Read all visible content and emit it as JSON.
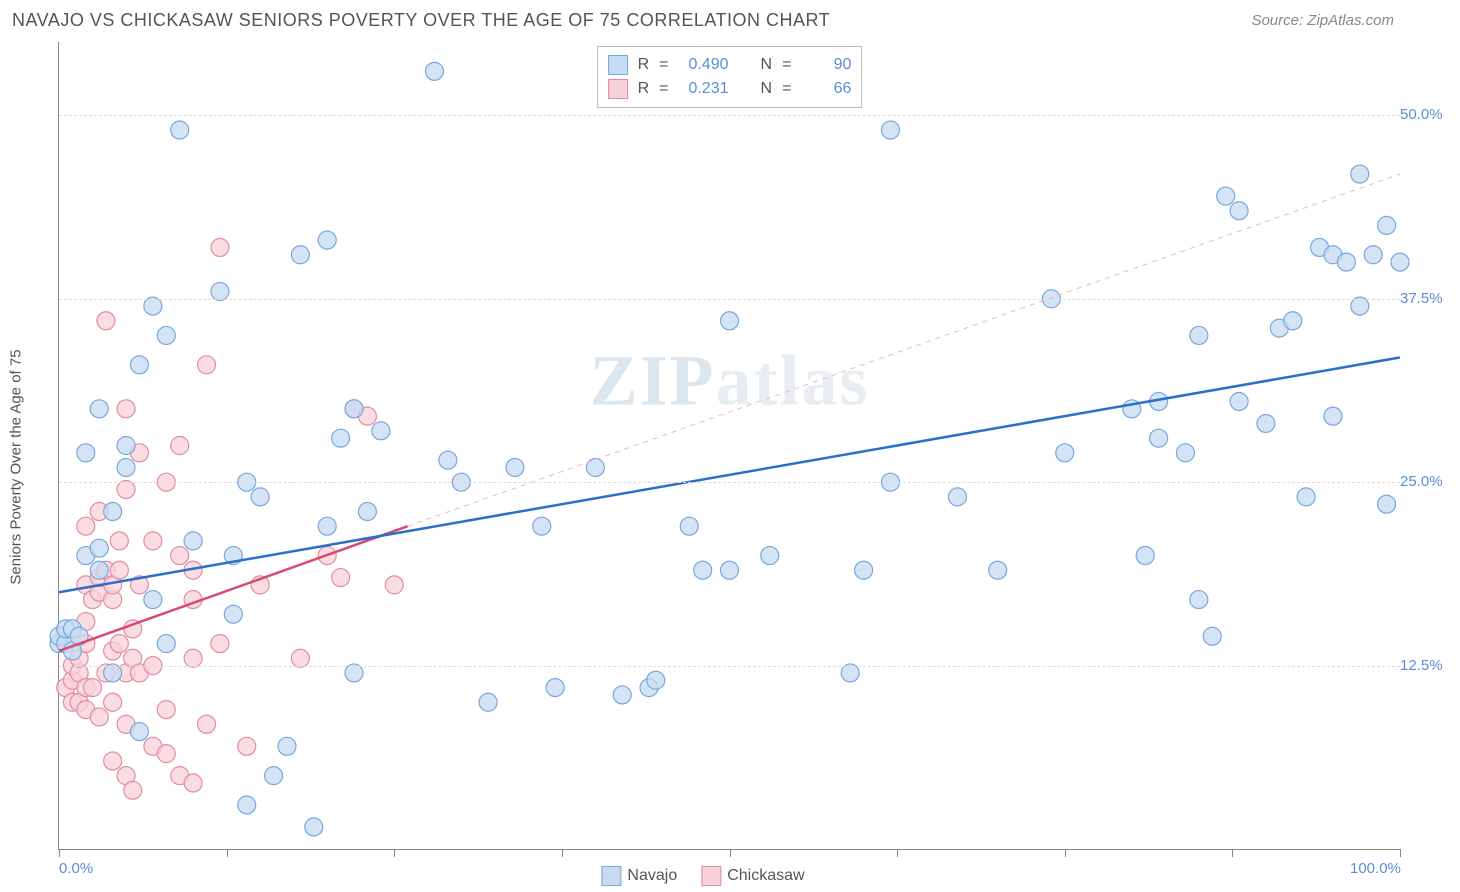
{
  "title": "NAVAJO VS CHICKASAW SENIORS POVERTY OVER THE AGE OF 75 CORRELATION CHART",
  "source": "Source: ZipAtlas.com",
  "ylabel": "Seniors Poverty Over the Age of 75",
  "watermark": "ZIPatlas",
  "chart": {
    "type": "scatter-correlation",
    "xlim": [
      0,
      100
    ],
    "ylim": [
      0,
      55
    ],
    "x_ticks": [
      0,
      12.5,
      25,
      37.5,
      50,
      62.5,
      75,
      87.5,
      100
    ],
    "x_tick_labels_shown": {
      "0": "0.0%",
      "100": "100.0%"
    },
    "y_gridlines": [
      12.5,
      25,
      37.5,
      50
    ],
    "y_tick_labels": {
      "12.5": "12.5%",
      "25": "25.0%",
      "37.5": "37.5%",
      "50": "50.0%"
    },
    "background_color": "#ffffff",
    "grid_color": "#dddddd",
    "axis_color": "#888888",
    "label_fontsize": 15,
    "tick_color": "#5b8dd6"
  },
  "series": {
    "navajo": {
      "label": "Navajo",
      "R": "0.490",
      "N": "90",
      "marker_fill": "#c5dbf2",
      "marker_stroke": "#77a7dd",
      "marker_radius": 9,
      "line_color": "#2b6fc9",
      "line_width": 2.5,
      "line_dash": "none",
      "trend": {
        "x1": 0,
        "y1": 17.5,
        "x2": 100,
        "y2": 33.5
      },
      "extrap": null,
      "points": [
        [
          0,
          14
        ],
        [
          0,
          14.5
        ],
        [
          0.5,
          14
        ],
        [
          0.5,
          15
        ],
        [
          1,
          13.5
        ],
        [
          1,
          15
        ],
        [
          1.5,
          14.5
        ],
        [
          2,
          20
        ],
        [
          2,
          27
        ],
        [
          3,
          19
        ],
        [
          3,
          20.5
        ],
        [
          3,
          30
        ],
        [
          4,
          12
        ],
        [
          4,
          23
        ],
        [
          5,
          26
        ],
        [
          5,
          27.5
        ],
        [
          6,
          8
        ],
        [
          6,
          33
        ],
        [
          7,
          17
        ],
        [
          7,
          37
        ],
        [
          8,
          14
        ],
        [
          8,
          35
        ],
        [
          9,
          49
        ],
        [
          10,
          21
        ],
        [
          12,
          38
        ],
        [
          13,
          16
        ],
        [
          13,
          20
        ],
        [
          14,
          3
        ],
        [
          14,
          25
        ],
        [
          15,
          24
        ],
        [
          16,
          5
        ],
        [
          17,
          7
        ],
        [
          18,
          40.5
        ],
        [
          19,
          1.5
        ],
        [
          20,
          22
        ],
        [
          20,
          41.5
        ],
        [
          21,
          28
        ],
        [
          22,
          30
        ],
        [
          22,
          12
        ],
        [
          23,
          23
        ],
        [
          24,
          28.5
        ],
        [
          28,
          53
        ],
        [
          29,
          26.5
        ],
        [
          30,
          25
        ],
        [
          32,
          10
        ],
        [
          34,
          26
        ],
        [
          36,
          22
        ],
        [
          37,
          11
        ],
        [
          40,
          26
        ],
        [
          42,
          10.5
        ],
        [
          44,
          11
        ],
        [
          44.5,
          11.5
        ],
        [
          47,
          22
        ],
        [
          48,
          19
        ],
        [
          50,
          36
        ],
        [
          50,
          19
        ],
        [
          53,
          20
        ],
        [
          59,
          12
        ],
        [
          60,
          19
        ],
        [
          62,
          49
        ],
        [
          62,
          25
        ],
        [
          67,
          24
        ],
        [
          70,
          19
        ],
        [
          74,
          37.5
        ],
        [
          75,
          27
        ],
        [
          80,
          30
        ],
        [
          81,
          20
        ],
        [
          82,
          30.5
        ],
        [
          82,
          28
        ],
        [
          84,
          27
        ],
        [
          85,
          35
        ],
        [
          85,
          17
        ],
        [
          86,
          14.5
        ],
        [
          87,
          44.5
        ],
        [
          88,
          43.5
        ],
        [
          88,
          30.5
        ],
        [
          90,
          29
        ],
        [
          91,
          35.5
        ],
        [
          92,
          36
        ],
        [
          93,
          24
        ],
        [
          94,
          41
        ],
        [
          95,
          40.5
        ],
        [
          95,
          29.5
        ],
        [
          96,
          40
        ],
        [
          97,
          37
        ],
        [
          97,
          46
        ],
        [
          98,
          40.5
        ],
        [
          99,
          23.5
        ],
        [
          99,
          42.5
        ],
        [
          100,
          40
        ]
      ]
    },
    "chickasaw": {
      "label": "Chickasaw",
      "R": "0.231",
      "N": "66",
      "marker_fill": "#f7d1da",
      "marker_stroke": "#e38ba2",
      "marker_radius": 9,
      "line_color": "#d84a6e",
      "line_width": 2.5,
      "line_dash": "none",
      "trend": {
        "x1": 0,
        "y1": 13.5,
        "x2": 26,
        "y2": 22
      },
      "extrap": {
        "x1": 26,
        "y1": 22,
        "x2": 100,
        "y2": 46,
        "dash": "5,5",
        "width": 1,
        "color": "#eeb7c2"
      },
      "points": [
        [
          0.5,
          11
        ],
        [
          1,
          10
        ],
        [
          1,
          11.5
        ],
        [
          1,
          12.5
        ],
        [
          1.5,
          10
        ],
        [
          1.5,
          12
        ],
        [
          1.5,
          13
        ],
        [
          2,
          9.5
        ],
        [
          2,
          11
        ],
        [
          2,
          14
        ],
        [
          2,
          15.5
        ],
        [
          2,
          18
        ],
        [
          2,
          22
        ],
        [
          2.5,
          11
        ],
        [
          2.5,
          17
        ],
        [
          3,
          9
        ],
        [
          3,
          17.5
        ],
        [
          3,
          18.5
        ],
        [
          3,
          23
        ],
        [
          3.5,
          12
        ],
        [
          3.5,
          19
        ],
        [
          3.5,
          36
        ],
        [
          4,
          6
        ],
        [
          4,
          10
        ],
        [
          4,
          13.5
        ],
        [
          4,
          17
        ],
        [
          4,
          18
        ],
        [
          4.5,
          14
        ],
        [
          4.5,
          19
        ],
        [
          4.5,
          21
        ],
        [
          5,
          5
        ],
        [
          5,
          8.5
        ],
        [
          5,
          12
        ],
        [
          5,
          24.5
        ],
        [
          5,
          30
        ],
        [
          5.5,
          4
        ],
        [
          5.5,
          13
        ],
        [
          5.5,
          15
        ],
        [
          6,
          12
        ],
        [
          6,
          18
        ],
        [
          6,
          27
        ],
        [
          7,
          7
        ],
        [
          7,
          12.5
        ],
        [
          7,
          21
        ],
        [
          8,
          6.5
        ],
        [
          8,
          9.5
        ],
        [
          8,
          25
        ],
        [
          9,
          5
        ],
        [
          9,
          20
        ],
        [
          9,
          27.5
        ],
        [
          10,
          4.5
        ],
        [
          10,
          17
        ],
        [
          10,
          19
        ],
        [
          10,
          13
        ],
        [
          11,
          8.5
        ],
        [
          11,
          33
        ],
        [
          12,
          14
        ],
        [
          12,
          41
        ],
        [
          14,
          7
        ],
        [
          15,
          18
        ],
        [
          18,
          13
        ],
        [
          20,
          20
        ],
        [
          21,
          18.5
        ],
        [
          22,
          30
        ],
        [
          23,
          29.5
        ],
        [
          25,
          18
        ]
      ]
    }
  },
  "stats_labels": {
    "R": "R",
    "eq": "=",
    "N": "N"
  }
}
